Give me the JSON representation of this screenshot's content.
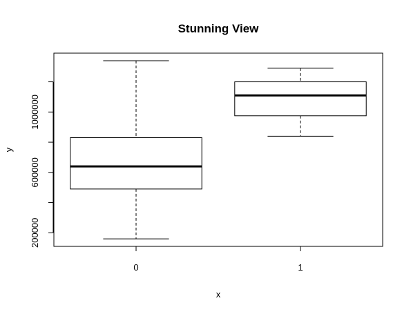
{
  "chart_data": {
    "type": "box",
    "title": "Stunning View",
    "xlabel": "x",
    "ylabel": "y",
    "categories": [
      "0",
      "1"
    ],
    "boxes": [
      {
        "category": "0",
        "whisker_low": 160000,
        "q1": 490000,
        "median": 640000,
        "q3": 830000,
        "whisker_high": 1340000
      },
      {
        "category": "1",
        "whisker_low": 840000,
        "q1": 975000,
        "median": 1110000,
        "q3": 1200000,
        "whisker_high": 1290000
      }
    ],
    "y_ticks": [
      200000,
      400000,
      600000,
      800000,
      1000000,
      1200000
    ],
    "y_tick_labels": [
      "200000",
      "",
      "600000",
      "",
      "1000000",
      ""
    ],
    "ylim": [
      110000,
      1390000
    ],
    "grid": false
  }
}
